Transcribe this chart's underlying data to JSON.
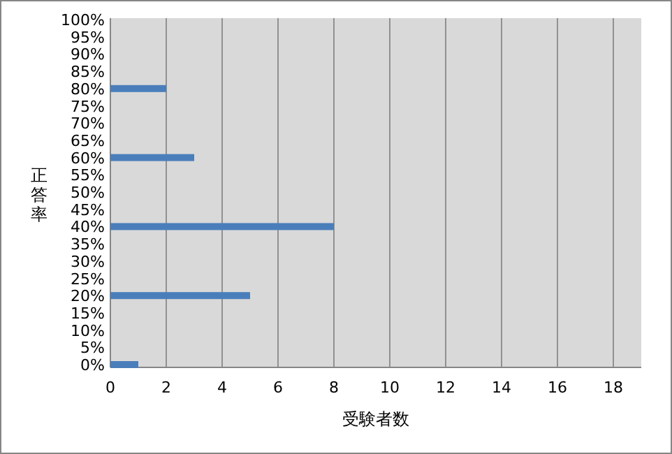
{
  "chart_data": {
    "type": "bar",
    "orientation": "horizontal",
    "xlabel": "受験者数",
    "ylabel": "正答率",
    "categories": [
      "100%",
      "95%",
      "90%",
      "85%",
      "80%",
      "75%",
      "70%",
      "65%",
      "60%",
      "55%",
      "50%",
      "45%",
      "40%",
      "35%",
      "30%",
      "25%",
      "20%",
      "15%",
      "10%",
      "5%",
      "0%"
    ],
    "values": [
      0,
      0,
      0,
      0,
      2,
      0,
      0,
      0,
      3,
      0,
      0,
      0,
      8,
      0,
      0,
      0,
      5,
      0,
      0,
      0,
      1
    ],
    "color": "#4a7ebb",
    "xlim": [
      0,
      19
    ],
    "xticks": [
      0,
      2,
      4,
      6,
      8,
      10,
      12,
      14,
      16,
      18
    ],
    "grid": "x"
  }
}
